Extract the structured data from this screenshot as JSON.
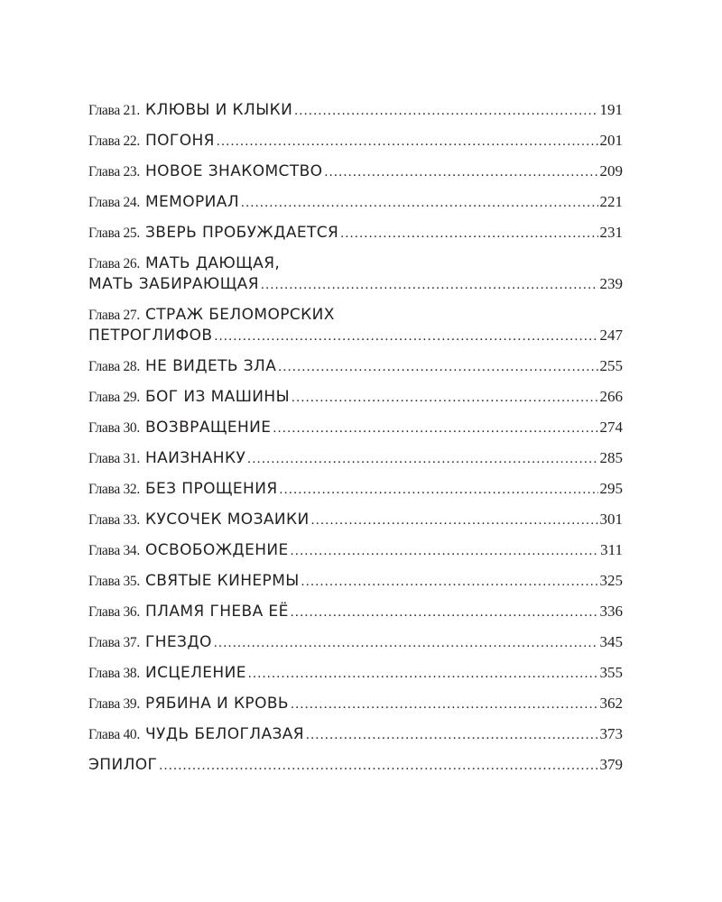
{
  "toc": {
    "entries": [
      {
        "label": "Глава 21.",
        "title": "КЛЮВЫ И КЛЫКИ",
        "page": "191"
      },
      {
        "label": "Глава 22.",
        "title": "ПОГОНЯ",
        "page": "201"
      },
      {
        "label": "Глава 23.",
        "title": "НОВОЕ ЗНАКОМСТВО",
        "page": "209"
      },
      {
        "label": "Глава 24.",
        "title": "МЕМОРИАЛ",
        "page": "221"
      },
      {
        "label": "Глава 25.",
        "title": "ЗВЕРЬ ПРОБУЖДАЕТСЯ",
        "page": "231"
      },
      {
        "label": "Глава 26.",
        "title": "МАТЬ ДАЮЩАЯ,",
        "title2": "МАТЬ ЗАБИРАЮЩАЯ",
        "page": "239"
      },
      {
        "label": "Глава 27.",
        "title": "СТРАЖ БЕЛОМОРСКИХ",
        "title2": "ПЕТРОГЛИФОВ",
        "page": "247"
      },
      {
        "label": "Глава 28.",
        "title": "НЕ ВИДЕТЬ ЗЛА",
        "page": "255"
      },
      {
        "label": "Глава 29.",
        "title": "БОГ ИЗ МАШИНЫ",
        "page": "266"
      },
      {
        "label": "Глава 30.",
        "title": "ВОЗВРАЩЕНИЕ",
        "page": "274"
      },
      {
        "label": "Глава 31.",
        "title": "НАИЗНАНКУ",
        "page": "285"
      },
      {
        "label": "Глава 32.",
        "title": "БЕЗ ПРОЩЕНИЯ",
        "page": "295"
      },
      {
        "label": "Глава 33.",
        "title": "КУСОЧЕК МОЗАИКИ",
        "page": "301"
      },
      {
        "label": "Глава 34.",
        "title": "ОСВОБОЖДЕНИЕ",
        "page": "311"
      },
      {
        "label": "Глава 35.",
        "title": "СВЯТЫЕ КИНЕРМЫ",
        "page": "325"
      },
      {
        "label": "Глава 36.",
        "title": "ПЛАМЯ ГНЕВА ЕЁ",
        "page": "336"
      },
      {
        "label": "Глава 37.",
        "title": "ГНЕЗДО",
        "page": "345"
      },
      {
        "label": "Глава 38.",
        "title": "ИСЦЕЛЕНИЕ",
        "page": "355"
      },
      {
        "label": "Глава 39.",
        "title": "РЯБИНА И КРОВЬ",
        "page": "362"
      },
      {
        "label": "Глава 40.",
        "title": "ЧУДЬ БЕЛОГЛАЗАЯ",
        "page": "373"
      },
      {
        "title": "ЭПИЛОГ",
        "page": "379"
      }
    ]
  }
}
